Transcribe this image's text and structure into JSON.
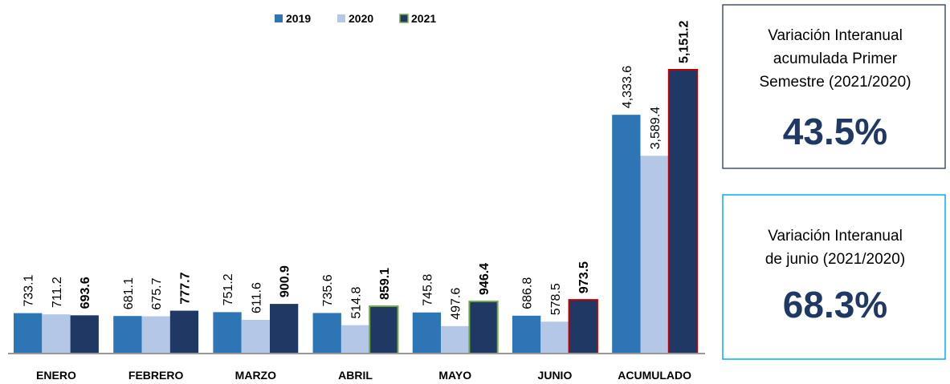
{
  "chart_data": {
    "type": "bar",
    "categories": [
      "ENERO",
      "FEBRERO",
      "MARZO",
      "ABRIL",
      "MAYO",
      "JUNIO",
      "ACUMULADO"
    ],
    "series": [
      {
        "name": "2019",
        "color": "#2e75b6",
        "values": [
          733.1,
          681.1,
          751.2,
          735.6,
          745.8,
          686.8,
          4333.6
        ],
        "value_labels": [
          "733.1",
          "681.1",
          "751.2",
          "735.6",
          "745.8",
          "686.8",
          "4,333.6"
        ]
      },
      {
        "name": "2020",
        "color": "#b4c7e7",
        "values": [
          711.2,
          675.7,
          611.6,
          514.8,
          497.6,
          578.5,
          3589.4
        ],
        "value_labels": [
          "711.2",
          "675.7",
          "611.6",
          "514.8",
          "497.6",
          "578.5",
          "3,589.4"
        ]
      },
      {
        "name": "2021",
        "color": "#1f3864",
        "values": [
          693.6,
          777.7,
          900.9,
          859.1,
          946.4,
          973.5,
          5151.2
        ],
        "value_labels": [
          "693.6",
          "777.7",
          "900.9",
          "859.1",
          "946.4",
          "973.5",
          "5,151.2"
        ],
        "edgecolors": [
          null,
          null,
          null,
          "#70ad47",
          "#70ad47",
          "#c00000",
          "#c00000"
        ],
        "bold_labels": true
      }
    ],
    "legend": "top"
  },
  "boxes": [
    {
      "lines": [
        "Variación Interanual",
        "acumulada Primer",
        "Semestre (2021/2020)"
      ],
      "value": "43.5%",
      "border": "#44546a"
    },
    {
      "lines": [
        "Variación Interanual",
        "de junio (2021/2020)"
      ],
      "value": "68.3%",
      "border": "#00b0f0"
    }
  ]
}
